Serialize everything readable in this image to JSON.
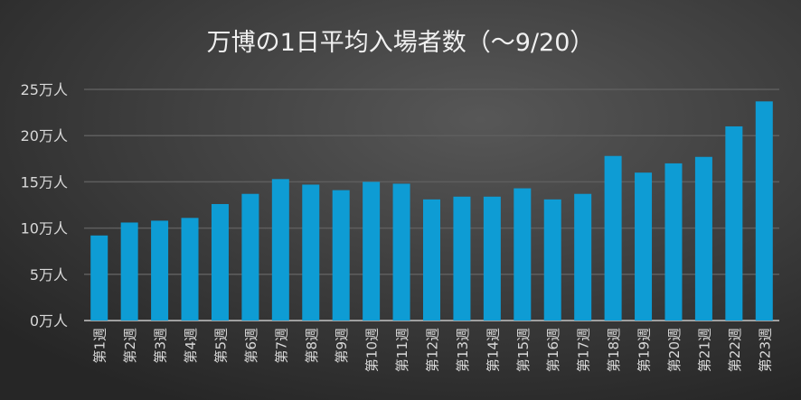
{
  "chart_data": {
    "type": "bar",
    "title": "万博の1日平均入場者数（～9/20）",
    "categories": [
      "第1週",
      "第2週",
      "第3週",
      "第4週",
      "第5週",
      "第6週",
      "第7週",
      "第8週",
      "第9週",
      "第10週",
      "第11週",
      "第12週",
      "第13週",
      "第14週",
      "第15週",
      "第16週",
      "第17週",
      "第18週",
      "第19週",
      "第20週",
      "第21週",
      "第22週",
      "第23週"
    ],
    "values": [
      9.2,
      10.6,
      10.8,
      11.1,
      12.6,
      13.7,
      15.3,
      14.7,
      14.1,
      15.0,
      14.8,
      13.1,
      13.4,
      13.4,
      14.3,
      13.1,
      13.7,
      17.8,
      16.0,
      17.0,
      17.7,
      21.0,
      23.7
    ],
    "ylim": [
      0,
      25
    ],
    "yticks": [
      0,
      5,
      10,
      15,
      20,
      25
    ],
    "ytick_labels": [
      "0万人",
      "5万人",
      "10万人",
      "15万人",
      "20万人",
      "25万人"
    ],
    "grid": true,
    "bar_color": "#0e9cd4",
    "background_color": "#3a3a3a"
  }
}
